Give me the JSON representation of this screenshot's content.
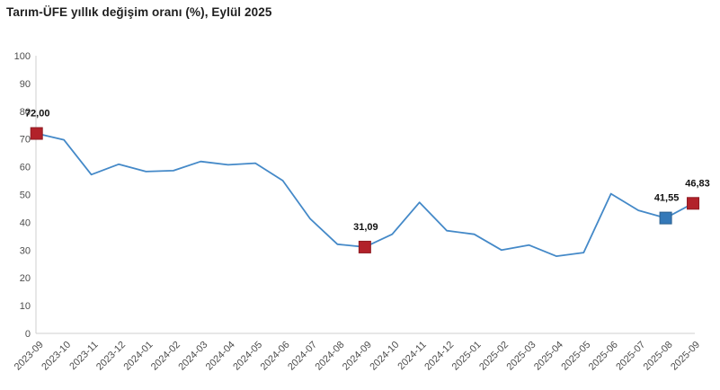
{
  "title": "Tarım-ÜFE yıllık değişim oranı (%), Eylül 2025",
  "colors": {
    "line": "#4489c8",
    "marker_red": "#b2222a",
    "marker_red_border": "#8e1b22",
    "marker_blue": "#3579b8",
    "marker_blue_border": "#2a5f8f",
    "axis_line": "#cfcfcf",
    "tick_text": "#4d4d4d",
    "point_label_text": "#111111",
    "title_text": "#1f1f1f"
  },
  "chart_data": {
    "type": "line",
    "title": "Tarım-ÜFE yıllık değişim oranı (%), Eylül 2025",
    "x": [
      "2023-09",
      "2023-10",
      "2023-11",
      "2023-12",
      "2024-01",
      "2024-02",
      "2024-03",
      "2024-04",
      "2024-05",
      "2024-06",
      "2024-07",
      "2024-08",
      "2024-09",
      "2024-10",
      "2024-11",
      "2024-12",
      "2025-01",
      "2025-02",
      "2025-03",
      "2025-04",
      "2025-05",
      "2025-06",
      "2025-07",
      "2025-08",
      "2025-09"
    ],
    "values": [
      72.0,
      69.7,
      57.2,
      60.9,
      58.3,
      58.6,
      61.9,
      60.7,
      61.3,
      55.0,
      41.3,
      32.1,
      31.09,
      35.7,
      47.2,
      37.0,
      35.7,
      30.0,
      31.8,
      27.8,
      29.1,
      50.3,
      44.3,
      41.55,
      46.83
    ],
    "ylim": [
      0,
      100
    ],
    "ytick_step": 10,
    "grid": false,
    "legend": "none",
    "xlabel": "",
    "ylabel": "",
    "annotations": [
      {
        "x": "2023-09",
        "label": "72,00",
        "marker": "red"
      },
      {
        "x": "2024-09",
        "label": "31,09",
        "marker": "red"
      },
      {
        "x": "2025-08",
        "label": "41,55",
        "marker": "blue"
      },
      {
        "x": "2025-09",
        "label": "46,83",
        "marker": "red"
      }
    ]
  }
}
